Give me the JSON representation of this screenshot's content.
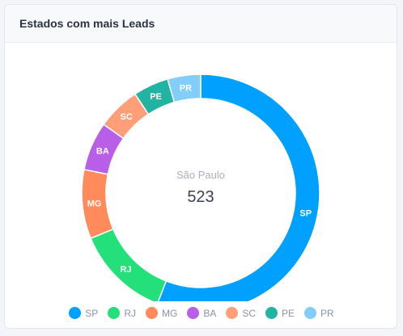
{
  "card": {
    "title": "Estados com mais Leads"
  },
  "center": {
    "label": "São Paulo",
    "value": "523"
  },
  "chart_data": {
    "type": "pie",
    "donut": true,
    "categories": [
      "SP",
      "RJ",
      "MG",
      "BA",
      "SC",
      "PE",
      "PR"
    ],
    "values": [
      523,
      120,
      88,
      62,
      55,
      45,
      42
    ],
    "colors": [
      "#00a0ff",
      "#23e07a",
      "#ff8a5c",
      "#b85ee8",
      "#ff9f7a",
      "#23b3a3",
      "#82cdfa"
    ],
    "center_label": "São Paulo",
    "center_value": "523",
    "legend_position": "bottom"
  }
}
